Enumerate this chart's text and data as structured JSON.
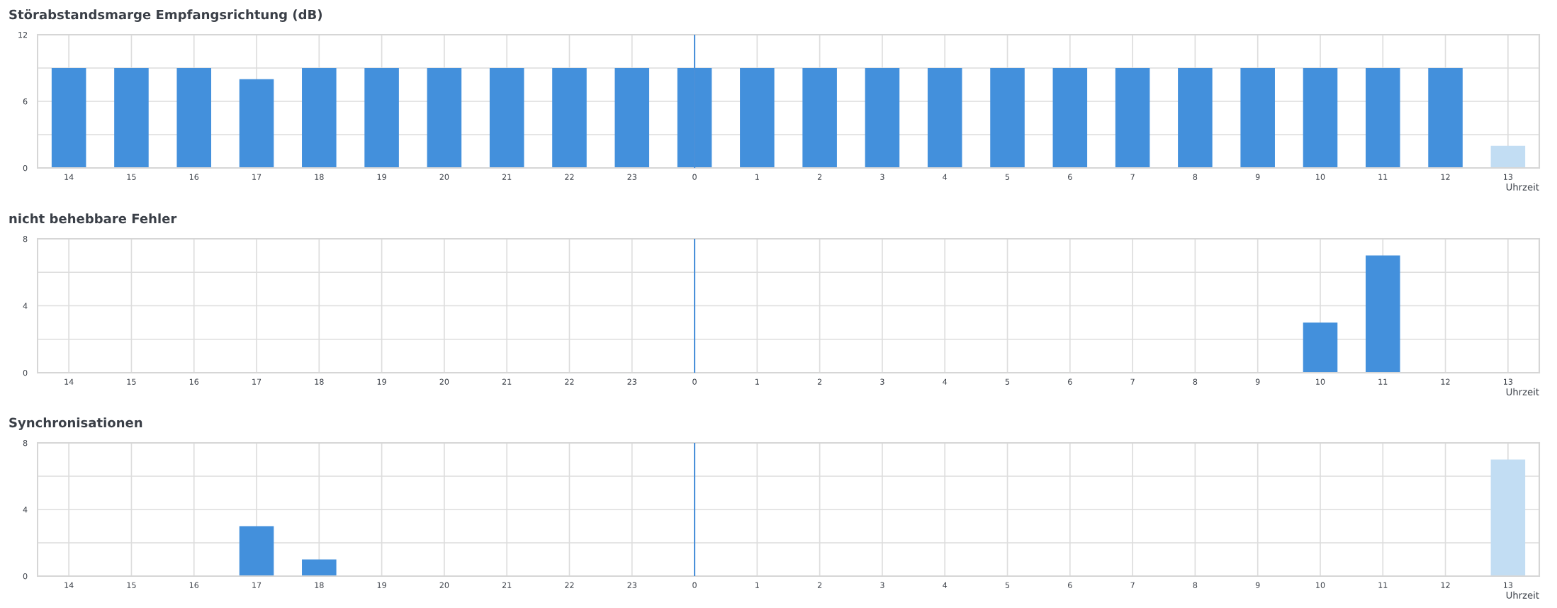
{
  "chart_data": [
    {
      "type": "bar",
      "title": "Störabstandsmarge Empfangsrichtung (dB)",
      "xlabel": "Uhrzeit",
      "categories": [
        "14",
        "15",
        "16",
        "17",
        "18",
        "19",
        "20",
        "21",
        "22",
        "23",
        "0",
        "1",
        "2",
        "3",
        "4",
        "5",
        "6",
        "7",
        "8",
        "9",
        "10",
        "11",
        "12",
        "13"
      ],
      "values": [
        9,
        9,
        9,
        8,
        9,
        9,
        9,
        9,
        9,
        9,
        9,
        9,
        9,
        9,
        9,
        9,
        9,
        9,
        9,
        9,
        9,
        9,
        9,
        2
      ],
      "colors": [
        "#4390dc",
        "#4390dc",
        "#4390dc",
        "#4390dc",
        "#4390dc",
        "#4390dc",
        "#4390dc",
        "#4390dc",
        "#4390dc",
        "#4390dc",
        "#4390dc",
        "#4390dc",
        "#4390dc",
        "#4390dc",
        "#4390dc",
        "#4390dc",
        "#4390dc",
        "#4390dc",
        "#4390dc",
        "#4390dc",
        "#4390dc",
        "#4390dc",
        "#4390dc",
        "#c2ddf3"
      ],
      "ylim": [
        0,
        12
      ],
      "yticks": [
        0,
        {
          "value": 3,
          "label": null
        },
        6,
        {
          "value": 9,
          "label": null
        },
        12
      ],
      "ref_lines": [
        {
          "axis": "x",
          "value": "0",
          "color": "#4a90d9"
        }
      ],
      "grid": true
    },
    {
      "type": "bar",
      "title": "nicht behebbare Fehler",
      "xlabel": "Uhrzeit",
      "categories": [
        "14",
        "15",
        "16",
        "17",
        "18",
        "19",
        "20",
        "21",
        "22",
        "23",
        "0",
        "1",
        "2",
        "3",
        "4",
        "5",
        "6",
        "7",
        "8",
        "9",
        "10",
        "11",
        "12",
        "13"
      ],
      "values": [
        0,
        0,
        0,
        0,
        0,
        0,
        0,
        0,
        0,
        0,
        0,
        0,
        0,
        0,
        0,
        0,
        0,
        0,
        0,
        0,
        3,
        7,
        0,
        0
      ],
      "colors": [
        "#4390dc",
        "#4390dc",
        "#4390dc",
        "#4390dc",
        "#4390dc",
        "#4390dc",
        "#4390dc",
        "#4390dc",
        "#4390dc",
        "#4390dc",
        "#4390dc",
        "#4390dc",
        "#4390dc",
        "#4390dc",
        "#4390dc",
        "#4390dc",
        "#4390dc",
        "#4390dc",
        "#4390dc",
        "#4390dc",
        "#4390dc",
        "#4390dc",
        "#4390dc",
        "#c2ddf3"
      ],
      "ylim": [
        0,
        8
      ],
      "yticks": [
        0,
        {
          "value": 2,
          "label": null
        },
        4,
        {
          "value": 6,
          "label": null
        },
        8
      ],
      "ref_lines": [
        {
          "axis": "x",
          "value": "0",
          "color": "#4a90d9"
        }
      ],
      "grid": true
    },
    {
      "type": "bar",
      "title": "Synchronisationen",
      "xlabel": "Uhrzeit",
      "categories": [
        "14",
        "15",
        "16",
        "17",
        "18",
        "19",
        "20",
        "21",
        "22",
        "23",
        "0",
        "1",
        "2",
        "3",
        "4",
        "5",
        "6",
        "7",
        "8",
        "9",
        "10",
        "11",
        "12",
        "13"
      ],
      "values": [
        0,
        0,
        0,
        3,
        1,
        0,
        0,
        0,
        0,
        0,
        0,
        0,
        0,
        0,
        0,
        0,
        0,
        0,
        0,
        0,
        0,
        0,
        0,
        7
      ],
      "colors": [
        "#4390dc",
        "#4390dc",
        "#4390dc",
        "#4390dc",
        "#4390dc",
        "#4390dc",
        "#4390dc",
        "#4390dc",
        "#4390dc",
        "#4390dc",
        "#4390dc",
        "#4390dc",
        "#4390dc",
        "#4390dc",
        "#4390dc",
        "#4390dc",
        "#4390dc",
        "#4390dc",
        "#4390dc",
        "#4390dc",
        "#4390dc",
        "#4390dc",
        "#4390dc",
        "#c2ddf3"
      ],
      "ylim": [
        0,
        8
      ],
      "yticks": [
        0,
        {
          "value": 2,
          "label": null
        },
        4,
        {
          "value": 6,
          "label": null
        },
        8
      ],
      "ref_lines": [
        {
          "axis": "x",
          "value": "0",
          "color": "#4a90d9"
        }
      ],
      "grid": true
    }
  ]
}
